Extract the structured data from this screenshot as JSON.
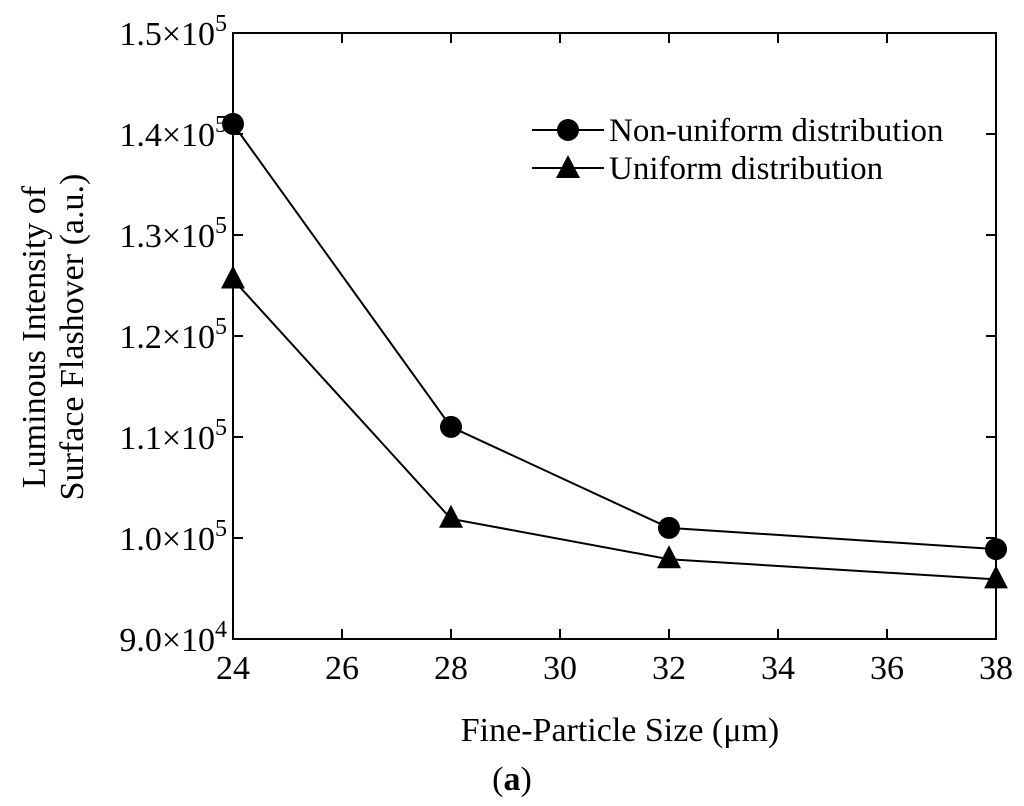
{
  "chart_data": {
    "type": "line",
    "title": "",
    "xlabel": "Fine-Particle Size (μm)",
    "ylabel_lines": [
      "Luminous Intensity of",
      "Surface Flashover (a.u.)"
    ],
    "xlim": [
      24,
      38
    ],
    "ylim": [
      90000,
      150000
    ],
    "x_ticks": [
      24,
      26,
      28,
      30,
      32,
      34,
      36,
      38
    ],
    "y_ticks": [
      {
        "value": 90000,
        "mantissa": "9.0×10",
        "exp": "4"
      },
      {
        "value": 100000,
        "mantissa": "1.0×10",
        "exp": "5"
      },
      {
        "value": 110000,
        "mantissa": "1.1×10",
        "exp": "5"
      },
      {
        "value": 120000,
        "mantissa": "1.2×10",
        "exp": "5"
      },
      {
        "value": 130000,
        "mantissa": "1.3×10",
        "exp": "5"
      },
      {
        "value": 140000,
        "mantissa": "1.4×10",
        "exp": "5"
      },
      {
        "value": 150000,
        "mantissa": "1.5×10",
        "exp": "5"
      }
    ],
    "legend_position": "top-right",
    "series": [
      {
        "name": "Non-uniform distribution",
        "marker": "circle",
        "x": [
          24,
          28,
          32,
          38
        ],
        "y": [
          141000,
          111000,
          101000,
          98900
        ]
      },
      {
        "name": "Uniform distribution",
        "marker": "triangle",
        "x": [
          24,
          28,
          32,
          38
        ],
        "y": [
          125600,
          101900,
          97900,
          95900
        ]
      }
    ],
    "caption": {
      "open": "(",
      "letter": "a",
      "close": ")"
    },
    "color": "#000000"
  }
}
